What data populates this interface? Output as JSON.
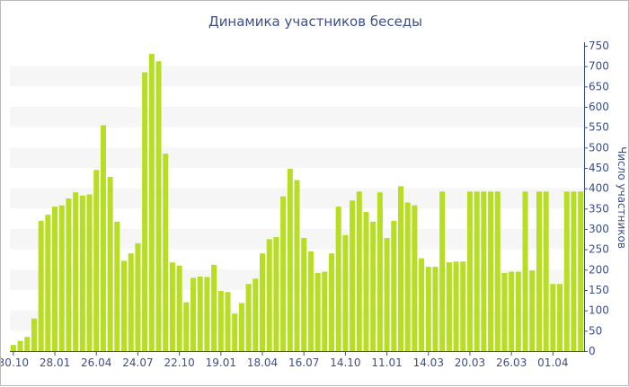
{
  "chart_data": {
    "type": "bar",
    "title": "Динамика участников беседы",
    "ylabel": "Число участников",
    "xlabel": "",
    "ylim": [
      0,
      750
    ],
    "y_ticks": [
      0,
      50,
      100,
      150,
      200,
      250,
      300,
      350,
      400,
      450,
      500,
      550,
      600,
      650,
      700,
      750
    ],
    "y_axis_side": "right",
    "grid": "alternating horizontal bands",
    "x_tick_labels": [
      {
        "label": "30.10",
        "index": 0
      },
      {
        "label": "28.01",
        "index": 6
      },
      {
        "label": "26.04",
        "index": 12
      },
      {
        "label": "24.07",
        "index": 18
      },
      {
        "label": "22.10",
        "index": 24
      },
      {
        "label": "19.01",
        "index": 30
      },
      {
        "label": "18.04",
        "index": 36
      },
      {
        "label": "16.07",
        "index": 42
      },
      {
        "label": "14.10",
        "index": 48
      },
      {
        "label": "11.01",
        "index": 54
      },
      {
        "label": "14.03",
        "index": 60
      },
      {
        "label": "20.03",
        "index": 66
      },
      {
        "label": "26.03",
        "index": 72
      },
      {
        "label": "01.04",
        "index": 78
      }
    ],
    "values": [
      15,
      25,
      35,
      80,
      320,
      335,
      355,
      358,
      375,
      390,
      382,
      385,
      445,
      555,
      428,
      318,
      222,
      240,
      265,
      685,
      730,
      712,
      485,
      218,
      210,
      120,
      180,
      183,
      182,
      212,
      148,
      145,
      92,
      118,
      165,
      178,
      240,
      275,
      280,
      380,
      448,
      420,
      278,
      245,
      192,
      195,
      240,
      355,
      285,
      370,
      392,
      342,
      318,
      390,
      278,
      320,
      405,
      365,
      358,
      228,
      207,
      207,
      392,
      218,
      220,
      220,
      392,
      392,
      392,
      392,
      392,
      192,
      195,
      195,
      392,
      198,
      392,
      392,
      165,
      165,
      392,
      392,
      392
    ],
    "colors": {
      "bar": "#b7de22",
      "band": "#f6f6f6",
      "text": "#3d4f8a",
      "axis": "#3d4f8a",
      "frame": "#b9b9b9"
    }
  }
}
